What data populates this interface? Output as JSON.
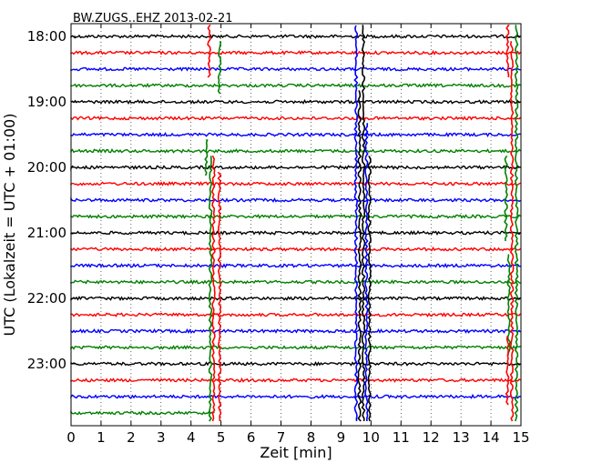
{
  "chart_data": {
    "type": "line",
    "title": "BW.ZUGS..EHZ 2013-02-21",
    "xlabel": "Zeit  [min]",
    "ylabel": "UTC (Lokalzeit = UTC + 01:00)",
    "xlim": [
      0,
      15
    ],
    "x_ticks": [
      "0",
      "1",
      "2",
      "3",
      "4",
      "5",
      "6",
      "7",
      "8",
      "9",
      "10",
      "11",
      "12",
      "13",
      "14",
      "15"
    ],
    "y_ticks": [
      "18:00",
      "19:00",
      "20:00",
      "21:00",
      "22:00",
      "23:00"
    ],
    "grid": "vertical dotted",
    "trace_interval_min": 15,
    "trace_colors": [
      "#000000",
      "#ff0000",
      "#0000ff",
      "#008000"
    ],
    "traces": [
      {
        "start": "18:00",
        "color": "#000000"
      },
      {
        "start": "18:15",
        "color": "#ff0000"
      },
      {
        "start": "18:30",
        "color": "#0000ff"
      },
      {
        "start": "18:45",
        "color": "#008000"
      },
      {
        "start": "19:00",
        "color": "#000000"
      },
      {
        "start": "19:15",
        "color": "#ff0000"
      },
      {
        "start": "19:30",
        "color": "#0000ff"
      },
      {
        "start": "19:45",
        "color": "#008000"
      },
      {
        "start": "20:00",
        "color": "#000000"
      },
      {
        "start": "20:15",
        "color": "#ff0000"
      },
      {
        "start": "20:30",
        "color": "#0000ff"
      },
      {
        "start": "20:45",
        "color": "#008000"
      },
      {
        "start": "21:00",
        "color": "#000000"
      },
      {
        "start": "21:15",
        "color": "#ff0000"
      },
      {
        "start": "21:30",
        "color": "#0000ff"
      },
      {
        "start": "21:45",
        "color": "#008000"
      },
      {
        "start": "22:00",
        "color": "#000000"
      },
      {
        "start": "22:15",
        "color": "#ff0000"
      },
      {
        "start": "22:30",
        "color": "#0000ff"
      },
      {
        "start": "22:45",
        "color": "#008000"
      },
      {
        "start": "23:00",
        "color": "#000000"
      },
      {
        "start": "23:15",
        "color": "#ff0000"
      },
      {
        "start": "23:30",
        "color": "#0000ff"
      },
      {
        "start": "23:45",
        "color": "#008000",
        "end_min": 4.8
      }
    ],
    "spikes": [
      {
        "x": 4.6,
        "trace_from": 0,
        "trace_to": 2,
        "color": "#ff0000"
      },
      {
        "x": 4.95,
        "trace_from": 1,
        "trace_to": 3,
        "color": "#008000"
      },
      {
        "x": 4.5,
        "trace_from": 7,
        "trace_to": 8,
        "color": "#008000"
      },
      {
        "x": 4.65,
        "trace_from": 8,
        "trace_to": 23,
        "color": "#008000"
      },
      {
        "x": 4.75,
        "trace_from": 8,
        "trace_to": 23,
        "color": "#ff0000"
      },
      {
        "x": 4.95,
        "trace_from": 9,
        "trace_to": 23,
        "color": "#ff0000"
      },
      {
        "x": 9.5,
        "trace_from": 0,
        "trace_to": 23,
        "color": "#0000ff"
      },
      {
        "x": 9.62,
        "trace_from": 4,
        "trace_to": 23,
        "color": "#000000"
      },
      {
        "x": 9.75,
        "trace_from": 0,
        "trace_to": 23,
        "color": "#000000"
      },
      {
        "x": 9.85,
        "trace_from": 6,
        "trace_to": 23,
        "color": "#0000ff"
      },
      {
        "x": 9.95,
        "trace_from": 8,
        "trace_to": 23,
        "color": "#000000"
      },
      {
        "x": 14.55,
        "trace_from": 0,
        "trace_to": 2,
        "color": "#ff0000"
      },
      {
        "x": 14.7,
        "trace_from": 1,
        "trace_to": 23,
        "color": "#ff0000"
      },
      {
        "x": 14.85,
        "trace_from": 0,
        "trace_to": 23,
        "color": "#008000"
      },
      {
        "x": 14.5,
        "trace_from": 8,
        "trace_to": 12,
        "color": "#008000"
      },
      {
        "x": 14.6,
        "trace_from": 14,
        "trace_to": 19,
        "color": "#008000"
      },
      {
        "x": 14.55,
        "trace_from": 19,
        "trace_to": 22,
        "color": "#ff0000"
      }
    ]
  }
}
